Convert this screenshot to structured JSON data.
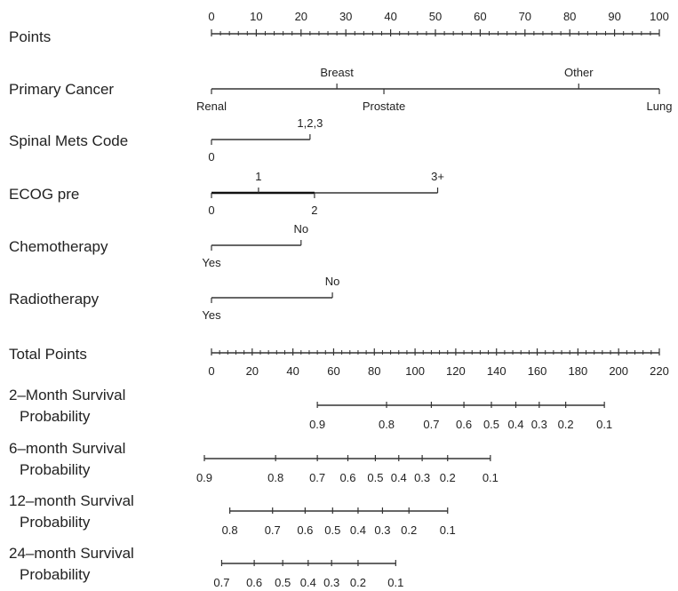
{
  "chart_data": {
    "type": "nomogram",
    "points_scale": {
      "label": "Points",
      "ticks": [
        "0",
        "10",
        "20",
        "30",
        "40",
        "50",
        "60",
        "70",
        "80",
        "90",
        "100"
      ],
      "min": 0,
      "max": 100
    },
    "predictors": [
      {
        "label": "Primary Cancer",
        "levels": [
          {
            "name": "Renal",
            "points": 0,
            "side": "below"
          },
          {
            "name": "Breast",
            "points": 28,
            "side": "above"
          },
          {
            "name": "Prostate",
            "points": 38.5,
            "side": "below"
          },
          {
            "name": "Other",
            "points": 82,
            "side": "above"
          },
          {
            "name": "Lung",
            "points": 100,
            "side": "below"
          }
        ]
      },
      {
        "label": "Spinal Mets Code",
        "levels": [
          {
            "name": "0",
            "points": 0,
            "side": "below"
          },
          {
            "name": "1,2,3",
            "points": 22,
            "side": "above"
          }
        ]
      },
      {
        "label": "ECOG pre",
        "levels": [
          {
            "name": "0",
            "points": 0,
            "side": "below"
          },
          {
            "name": "1",
            "points": 10.5,
            "side": "above"
          },
          {
            "name": "2",
            "points": 23,
            "side": "below"
          },
          {
            "name": "3+",
            "points": 50.5,
            "side": "above"
          }
        ],
        "thick_segment": [
          0,
          23
        ]
      },
      {
        "label": "Chemotherapy",
        "levels": [
          {
            "name": "Yes",
            "points": 0,
            "side": "below"
          },
          {
            "name": "No",
            "points": 20,
            "side": "above"
          }
        ]
      },
      {
        "label": "Radiotherapy",
        "levels": [
          {
            "name": "Yes",
            "points": 0,
            "side": "below"
          },
          {
            "name": "No",
            "points": 27,
            "side": "above"
          }
        ]
      }
    ],
    "total_points_scale": {
      "label": "Total Points",
      "ticks": [
        "0",
        "20",
        "40",
        "60",
        "80",
        "100",
        "120",
        "140",
        "160",
        "180",
        "200",
        "220"
      ],
      "min": 0,
      "max": 220
    },
    "survival_scales": [
      {
        "label_line1": "2–Month Survival",
        "label_line2": "Probability",
        "ticks": [
          {
            "label": "0.9",
            "total_points": 52
          },
          {
            "label": "0.8",
            "total_points": 86
          },
          {
            "label": "0.7",
            "total_points": 108
          },
          {
            "label": "0.6",
            "total_points": 124
          },
          {
            "label": "0.5",
            "total_points": 137.5
          },
          {
            "label": "0.4",
            "total_points": 149.5
          },
          {
            "label": "0.3",
            "total_points": 161
          },
          {
            "label": "0.2",
            "total_points": 174
          },
          {
            "label": "0.1",
            "total_points": 193
          }
        ]
      },
      {
        "label_line1": "6–month Survival",
        "label_line2": "Probability",
        "ticks": [
          {
            "label": "0.9",
            "total_points": -3.5
          },
          {
            "label": "0.8",
            "total_points": 31.5
          },
          {
            "label": "0.7",
            "total_points": 52
          },
          {
            "label": "0.6",
            "total_points": 67
          },
          {
            "label": "0.5",
            "total_points": 80.5
          },
          {
            "label": "0.4",
            "total_points": 92
          },
          {
            "label": "0.3",
            "total_points": 103.5
          },
          {
            "label": "0.2",
            "total_points": 116
          },
          {
            "label": "0.1",
            "total_points": 137
          }
        ]
      },
      {
        "label_line1": "12–month Survival",
        "label_line2": "Probability",
        "ticks": [
          {
            "label": "0.8",
            "total_points": 9
          },
          {
            "label": "0.7",
            "total_points": 30
          },
          {
            "label": "0.6",
            "total_points": 46
          },
          {
            "label": "0.5",
            "total_points": 59.5
          },
          {
            "label": "0.4",
            "total_points": 72
          },
          {
            "label": "0.3",
            "total_points": 84
          },
          {
            "label": "0.2",
            "total_points": 97
          },
          {
            "label": "0.1",
            "total_points": 116
          }
        ]
      },
      {
        "label_line1": "24–month Survival",
        "label_line2": "Probability",
        "ticks": [
          {
            "label": "0.7",
            "total_points": 5
          },
          {
            "label": "0.6",
            "total_points": 21
          },
          {
            "label": "0.5",
            "total_points": 35
          },
          {
            "label": "0.4",
            "total_points": 47.5
          },
          {
            "label": "0.3",
            "total_points": 59
          },
          {
            "label": "0.2",
            "total_points": 72
          },
          {
            "label": "0.1",
            "total_points": 90.5
          }
        ]
      }
    ]
  }
}
